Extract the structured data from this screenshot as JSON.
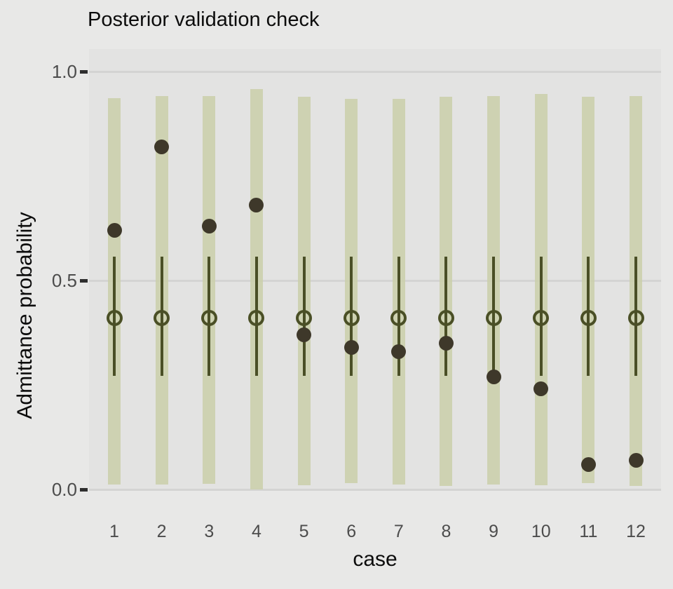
{
  "chart_data": {
    "type": "scatter",
    "subtype": "posterior-predictive-interval-plot",
    "title": "Posterior validation check",
    "xlabel": "case",
    "ylabel": "Admittance probability",
    "ylim": [
      0,
      1
    ],
    "grid": true,
    "legend": "none",
    "yticks": [
      {
        "value": 0.0,
        "label": "0.0"
      },
      {
        "value": 0.5,
        "label": "0.5"
      },
      {
        "value": 1.0,
        "label": "1.0"
      }
    ],
    "categories": [
      "1",
      "2",
      "3",
      "4",
      "5",
      "6",
      "7",
      "8",
      "9",
      "10",
      "11",
      "12"
    ],
    "series": [
      {
        "name": "outer-credible-interval",
        "mark": "wide-bar",
        "lo": [
          0.011,
          0.011,
          0.014,
          0.0,
          0.01,
          0.015,
          0.011,
          0.008,
          0.012,
          0.01,
          0.015,
          0.008
        ],
        "hi": [
          0.936,
          0.942,
          0.941,
          0.958,
          0.94,
          0.934,
          0.934,
          0.94,
          0.941,
          0.947,
          0.939,
          0.941
        ]
      },
      {
        "name": "inner-credible-interval",
        "mark": "thin-line",
        "lo": [
          0.272,
          0.272,
          0.272,
          0.272,
          0.272,
          0.272,
          0.272,
          0.272,
          0.272,
          0.272,
          0.272,
          0.272
        ],
        "hi": [
          0.557,
          0.557,
          0.557,
          0.557,
          0.557,
          0.557,
          0.557,
          0.557,
          0.557,
          0.557,
          0.557,
          0.557
        ]
      },
      {
        "name": "posterior-median",
        "mark": "open-circle",
        "values": [
          0.41,
          0.41,
          0.41,
          0.41,
          0.41,
          0.41,
          0.41,
          0.41,
          0.41,
          0.41,
          0.41,
          0.41
        ]
      },
      {
        "name": "observed-value",
        "mark": "filled-dot",
        "values": [
          0.62,
          0.82,
          0.63,
          0.68,
          0.37,
          0.34,
          0.33,
          0.35,
          0.27,
          0.24,
          0.06,
          0.07
        ]
      }
    ],
    "colors": {
      "figure_bg": "#e8e8e7",
      "panel_bg": "#e3e3e2",
      "gridline": "#d4d4d3",
      "outer_interval_fill": "rgba(202,207,169,0.85)",
      "inner_interval_stroke": "#4a4f26",
      "median_stroke": "#4a4f26",
      "observed_fill": "#3e382a",
      "tick_label": "#4c4c4c",
      "tick_mark": "#2e2e2e",
      "title_text": "#0c0c0c"
    }
  }
}
